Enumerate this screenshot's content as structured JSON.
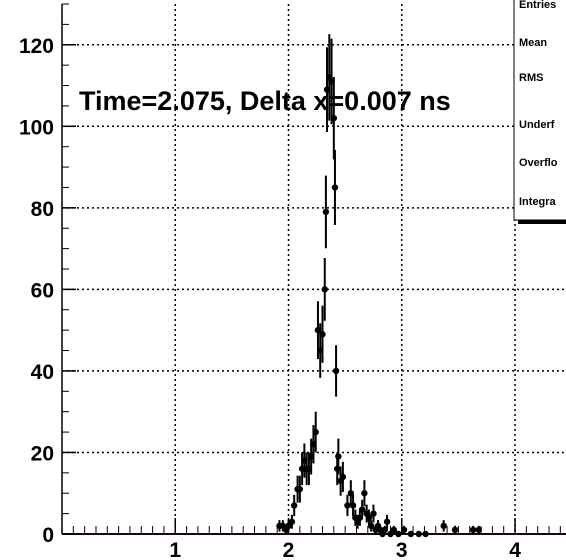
{
  "chart_data": {
    "type": "scatter",
    "title": "",
    "xlabel": "",
    "ylabel": "",
    "xlim": [
      0,
      4.45
    ],
    "ylim": [
      0,
      130
    ],
    "grid": true,
    "x_ticks": [
      1,
      2,
      3,
      4
    ],
    "x_tick_labels": [
      "1",
      "2",
      "3",
      "4"
    ],
    "y_ticks": [
      0,
      20,
      40,
      60,
      80,
      100,
      120
    ],
    "y_tick_labels": [
      "0",
      "20",
      "40",
      "60",
      "80",
      "100",
      "120"
    ],
    "annotation": "Time=2.075, Delta x=0.007 ns",
    "stats_box": {
      "labels": [
        "Entries",
        "Mean",
        "RMS",
        "Underf",
        "Overflo",
        "Integra"
      ]
    },
    "series": [
      {
        "x": [
          1.92,
          1.95,
          1.98,
          2.0,
          2.03,
          2.05,
          2.08,
          2.1,
          2.12,
          2.14,
          2.16,
          2.18,
          2.2,
          2.22,
          2.24,
          2.26,
          2.28,
          2.3,
          2.32,
          2.33,
          2.34,
          2.36,
          2.38,
          2.4,
          2.41,
          2.42,
          2.43,
          2.44,
          2.46,
          2.48,
          2.52,
          2.55,
          2.57,
          2.59,
          2.61,
          2.63,
          2.65,
          2.67,
          2.69,
          2.71,
          2.73,
          2.75,
          2.77,
          2.79,
          2.81,
          2.83,
          2.85,
          2.87,
          2.9,
          2.93,
          2.97,
          3.02,
          3.08,
          3.15,
          3.21,
          3.37,
          3.47,
          3.63,
          3.68
        ],
        "values": [
          2,
          2,
          1,
          2,
          3,
          7,
          11,
          11,
          16,
          18,
          16,
          16,
          19,
          22,
          25,
          50,
          45,
          49,
          60,
          79,
          109,
          112,
          111,
          102,
          85,
          40,
          16,
          19,
          13,
          14,
          7,
          10,
          7,
          4,
          3,
          4,
          6,
          10,
          5,
          4,
          2,
          5,
          1,
          2,
          1,
          0,
          1,
          3,
          0,
          1,
          0,
          1,
          0,
          0,
          0,
          2,
          1,
          1,
          1
        ],
        "errors": [
          1.4,
          1.4,
          1.0,
          1.4,
          1.7,
          2.6,
          3.3,
          3.3,
          4.0,
          4.2,
          4.0,
          4.0,
          4.4,
          4.7,
          5.0,
          7.1,
          6.7,
          7.0,
          7.7,
          8.9,
          10.4,
          10.6,
          10.5,
          10.1,
          9.2,
          6.3,
          4.0,
          4.4,
          3.6,
          3.7,
          2.6,
          3.2,
          2.6,
          2.0,
          1.7,
          2.0,
          2.4,
          3.2,
          2.2,
          2.0,
          1.4,
          2.2,
          1.0,
          1.4,
          1.0,
          0,
          1.0,
          1.7,
          0,
          1.0,
          0,
          1.0,
          0,
          0,
          0,
          1.4,
          1.0,
          1.0,
          1.0
        ]
      }
    ]
  }
}
